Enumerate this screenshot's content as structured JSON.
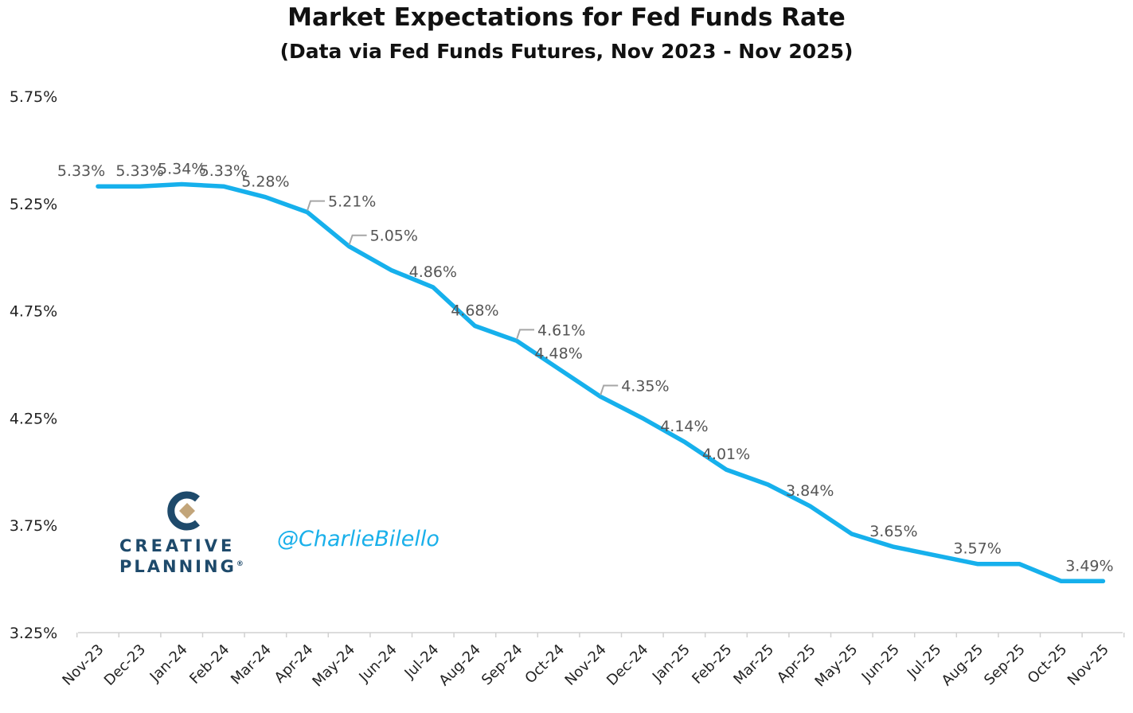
{
  "chart_data": {
    "type": "line",
    "title": "Market Expectations for Fed Funds Rate",
    "subtitle": "(Data via Fed Funds Futures, Nov 2023 - Nov 2025)",
    "xlabel": "",
    "ylabel": "",
    "categories": [
      "Nov-23",
      "Dec-23",
      "Jan-24",
      "Feb-24",
      "Mar-24",
      "Apr-24",
      "May-24",
      "Jun-24",
      "Jul-24",
      "Aug-24",
      "Sep-24",
      "Oct-24",
      "Nov-24",
      "Dec-24",
      "Jan-25",
      "Feb-25",
      "Mar-25",
      "Apr-25",
      "May-25",
      "Jun-25",
      "Jul-25",
      "Aug-25",
      "Sep-25",
      "Oct-25",
      "Nov-25"
    ],
    "series": [
      {
        "name": "",
        "color": "#16b0ec",
        "values": [
          5.33,
          5.33,
          5.34,
          5.33,
          5.28,
          5.21,
          5.05,
          4.94,
          4.86,
          4.68,
          4.61,
          4.48,
          4.35,
          4.25,
          4.14,
          4.01,
          3.94,
          3.84,
          3.71,
          3.65,
          3.61,
          3.57,
          3.57,
          3.49,
          3.49
        ]
      }
    ],
    "data_labels": [
      {
        "index": 0,
        "text": "5.33%"
      },
      {
        "index": 1,
        "text": "5.33%"
      },
      {
        "index": 2,
        "text": "5.34%"
      },
      {
        "index": 3,
        "text": "5.33%"
      },
      {
        "index": 4,
        "text": "5.28%"
      },
      {
        "index": 5,
        "text": "5.21%"
      },
      {
        "index": 6,
        "text": "5.05%"
      },
      {
        "index": 8,
        "text": "4.86%"
      },
      {
        "index": 9,
        "text": "4.68%"
      },
      {
        "index": 10,
        "text": "4.61%"
      },
      {
        "index": 11,
        "text": "4.48%"
      },
      {
        "index": 12,
        "text": "4.35%"
      },
      {
        "index": 14,
        "text": "4.14%"
      },
      {
        "index": 15,
        "text": "4.01%"
      },
      {
        "index": 17,
        "text": "3.84%"
      },
      {
        "index": 19,
        "text": "3.65%"
      },
      {
        "index": 21,
        "text": "3.57%"
      },
      {
        "index": 24,
        "text": "3.49%"
      }
    ],
    "y_ticks": [
      5.75,
      5.25,
      4.75,
      4.25,
      3.75,
      3.25
    ],
    "y_tick_labels": [
      "5.75%",
      "5.25%",
      "4.75%",
      "4.25%",
      "3.75%",
      "3.25%"
    ],
    "ylim": [
      3.25,
      5.75
    ],
    "grid": false,
    "legend": "none"
  },
  "branding": {
    "logo_line1": "CREATIVE",
    "logo_line2": "PLANNING",
    "logo_registered": "®",
    "handle": "@CharlieBilello",
    "logo_color": "#1e4a6b",
    "logo_accent": "#c2a57a",
    "handle_color": "#1ab0ea"
  }
}
